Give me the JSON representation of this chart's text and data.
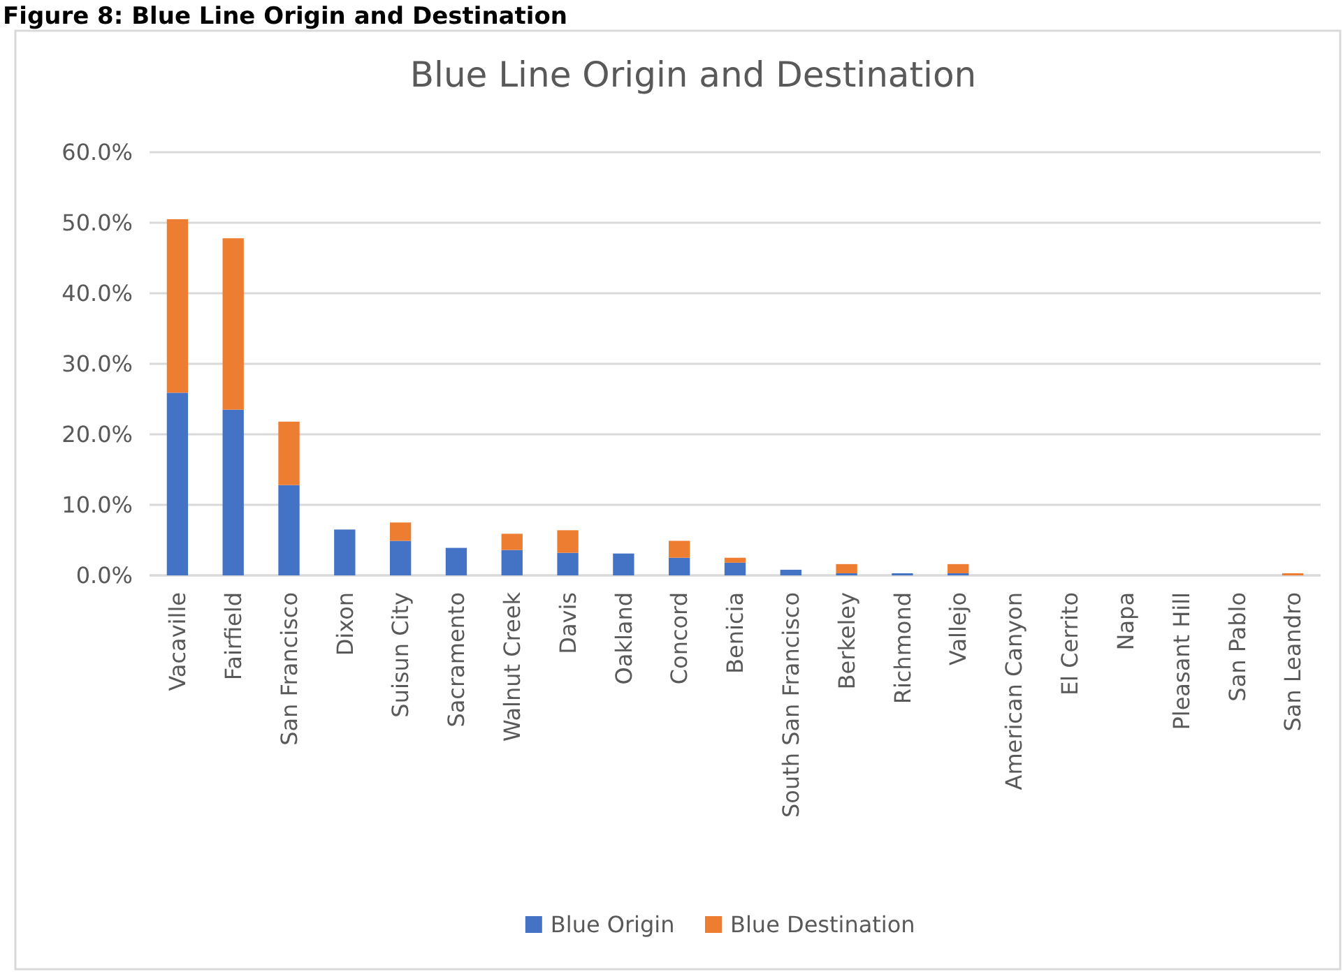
{
  "chart_data": {
    "type": "bar",
    "title": "Blue Line Origin and Destination",
    "annotations": [
      "Figure 8: Blue Line Origin and Destination"
    ],
    "categories": [
      "Vacaville",
      "Fairfield",
      "San Francisco",
      "Dixon",
      "Suisun City",
      "Sacramento",
      "Walnut Creek",
      "Davis",
      "Oakland",
      "Concord",
      "Benicia",
      "South San Francisco",
      "Berkeley",
      "Richmond",
      "Vallejo",
      "American Canyon",
      "El Cerrito",
      "Napa",
      "Pleasant Hill",
      "San Pablo",
      "San Leandro"
    ],
    "series": [
      {
        "name": "Blue Origin",
        "color": "#4472c4",
        "values": [
          25.9,
          23.5,
          12.8,
          6.5,
          4.9,
          3.9,
          3.6,
          3.2,
          3.1,
          2.5,
          1.8,
          0.8,
          0.3,
          0.3,
          0.3,
          0,
          0,
          0,
          0,
          0,
          0
        ]
      },
      {
        "name": "Blue Destination",
        "color": "#ed7d31",
        "values": [
          24.6,
          24.3,
          9.0,
          0,
          2.6,
          0,
          2.3,
          3.2,
          0,
          2.4,
          0.7,
          0,
          1.3,
          0,
          1.3,
          0,
          0,
          0,
          0,
          0,
          0.3
        ]
      }
    ],
    "stacked": true,
    "ylim": [
      0,
      60
    ],
    "yticks": [
      {
        "value": 0,
        "label": "0.0%"
      },
      {
        "value": 10,
        "label": "10.0%"
      },
      {
        "value": 20,
        "label": "20.0%"
      },
      {
        "value": 30,
        "label": "30.0%"
      },
      {
        "value": 40,
        "label": "40.0%"
      },
      {
        "value": 50,
        "label": "50.0%"
      },
      {
        "value": 60,
        "label": "60.0%"
      }
    ],
    "grid": "y",
    "legend": "bottom"
  }
}
